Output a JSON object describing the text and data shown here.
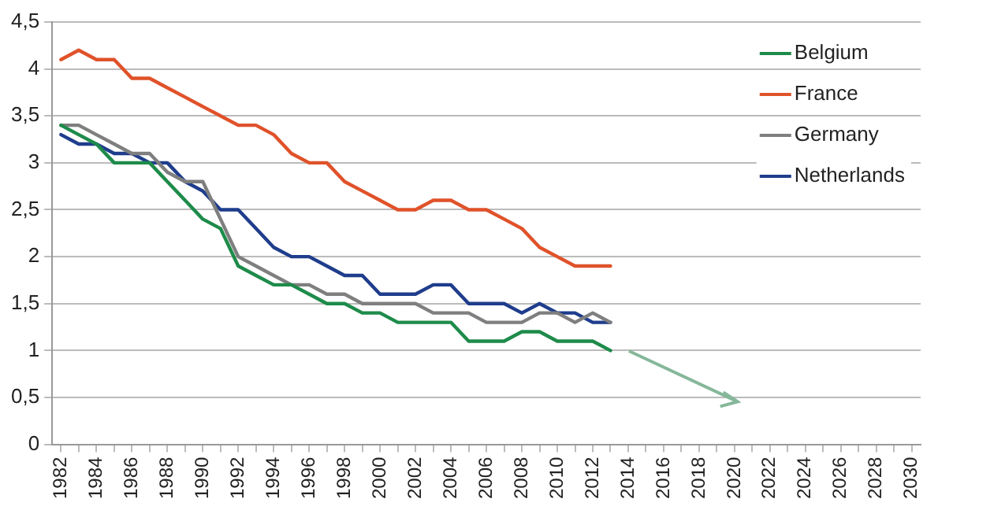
{
  "chart_data": {
    "type": "line",
    "x": [
      1982,
      1983,
      1984,
      1985,
      1986,
      1987,
      1988,
      1989,
      1990,
      1991,
      1992,
      1993,
      1994,
      1995,
      1996,
      1997,
      1998,
      1999,
      2000,
      2001,
      2002,
      2003,
      2004,
      2005,
      2006,
      2007,
      2008,
      2009,
      2010,
      2011,
      2012,
      2013
    ],
    "series": [
      {
        "name": "Belgium",
        "color": "#1e8b4a",
        "values": [
          3.4,
          3.3,
          3.2,
          3.0,
          3.0,
          3.0,
          2.8,
          2.6,
          2.4,
          2.3,
          1.9,
          1.8,
          1.7,
          1.7,
          1.6,
          1.5,
          1.5,
          1.4,
          1.4,
          1.3,
          1.3,
          1.3,
          1.3,
          1.1,
          1.1,
          1.1,
          1.2,
          1.2,
          1.1,
          1.1,
          1.1,
          1.0
        ]
      },
      {
        "name": "France",
        "color": "#e0522a",
        "values": [
          4.1,
          4.2,
          4.1,
          4.1,
          3.9,
          3.9,
          3.8,
          3.7,
          3.6,
          3.5,
          3.4,
          3.4,
          3.3,
          3.1,
          3.0,
          3.0,
          2.8,
          2.7,
          2.6,
          2.5,
          2.5,
          2.6,
          2.6,
          2.5,
          2.5,
          2.4,
          2.3,
          2.1,
          2.0,
          1.9,
          1.9,
          1.9
        ]
      },
      {
        "name": "Germany",
        "color": "#7f7f7f",
        "values": [
          3.4,
          3.4,
          3.3,
          3.2,
          3.1,
          3.1,
          2.9,
          2.8,
          2.8,
          2.4,
          2.0,
          1.9,
          1.8,
          1.7,
          1.7,
          1.6,
          1.6,
          1.5,
          1.5,
          1.5,
          1.5,
          1.4,
          1.4,
          1.4,
          1.3,
          1.3,
          1.3,
          1.4,
          1.4,
          1.3,
          1.4,
          1.3
        ]
      },
      {
        "name": "Netherlands",
        "color": "#1f3d8c",
        "values": [
          3.3,
          3.2,
          3.2,
          3.1,
          3.1,
          3.0,
          3.0,
          2.8,
          2.7,
          2.5,
          2.5,
          2.3,
          2.1,
          2.0,
          2.0,
          1.9,
          1.8,
          1.8,
          1.6,
          1.6,
          1.6,
          1.7,
          1.7,
          1.5,
          1.5,
          1.5,
          1.4,
          1.5,
          1.4,
          1.4,
          1.3,
          1.3
        ]
      }
    ],
    "xlim": [
      1981.5,
      2030.5
    ],
    "xticks": [
      1982,
      {
        "value": 1983,
        "label": null
      },
      1984,
      {
        "value": 1985,
        "label": null
      },
      1986,
      {
        "value": 1987,
        "label": null
      },
      1988,
      {
        "value": 1989,
        "label": null
      },
      1990,
      {
        "value": 1991,
        "label": null
      },
      1992,
      {
        "value": 1993,
        "label": null
      },
      1994,
      {
        "value": 1995,
        "label": null
      },
      1996,
      {
        "value": 1997,
        "label": null
      },
      1998,
      {
        "value": 1999,
        "label": null
      },
      2000,
      {
        "value": 2001,
        "label": null
      },
      2002,
      {
        "value": 2003,
        "label": null
      },
      2004,
      {
        "value": 2005,
        "label": null
      },
      2006,
      {
        "value": 2007,
        "label": null
      },
      2008,
      {
        "value": 2009,
        "label": null
      },
      2010,
      {
        "value": 2011,
        "label": null
      },
      2012,
      {
        "value": 2013,
        "label": null
      },
      2014,
      {
        "value": 2015,
        "label": null
      },
      2016,
      {
        "value": 2017,
        "label": null
      },
      2018,
      {
        "value": 2019,
        "label": null
      },
      2020,
      {
        "value": 2021,
        "label": null
      },
      2022,
      {
        "value": 2023,
        "label": null
      },
      2024,
      {
        "value": 2025,
        "label": null
      },
      2026,
      {
        "value": 2027,
        "label": null
      },
      2028,
      {
        "value": 2029,
        "label": null
      },
      2030
    ],
    "ylim": [
      0,
      4.5
    ],
    "yticks": [
      0,
      {
        "value": 0.5,
        "label": "0,5"
      },
      1,
      {
        "value": 1.5,
        "label": "1,5"
      },
      2,
      {
        "value": 2.5,
        "label": "2,5"
      },
      3,
      {
        "value": 3.5,
        "label": "3,5"
      },
      4,
      {
        "value": 4.5,
        "label": "4,5"
      }
    ],
    "grid": "y",
    "legend": "top right",
    "marker": "none",
    "line_style": "solid"
  }
}
